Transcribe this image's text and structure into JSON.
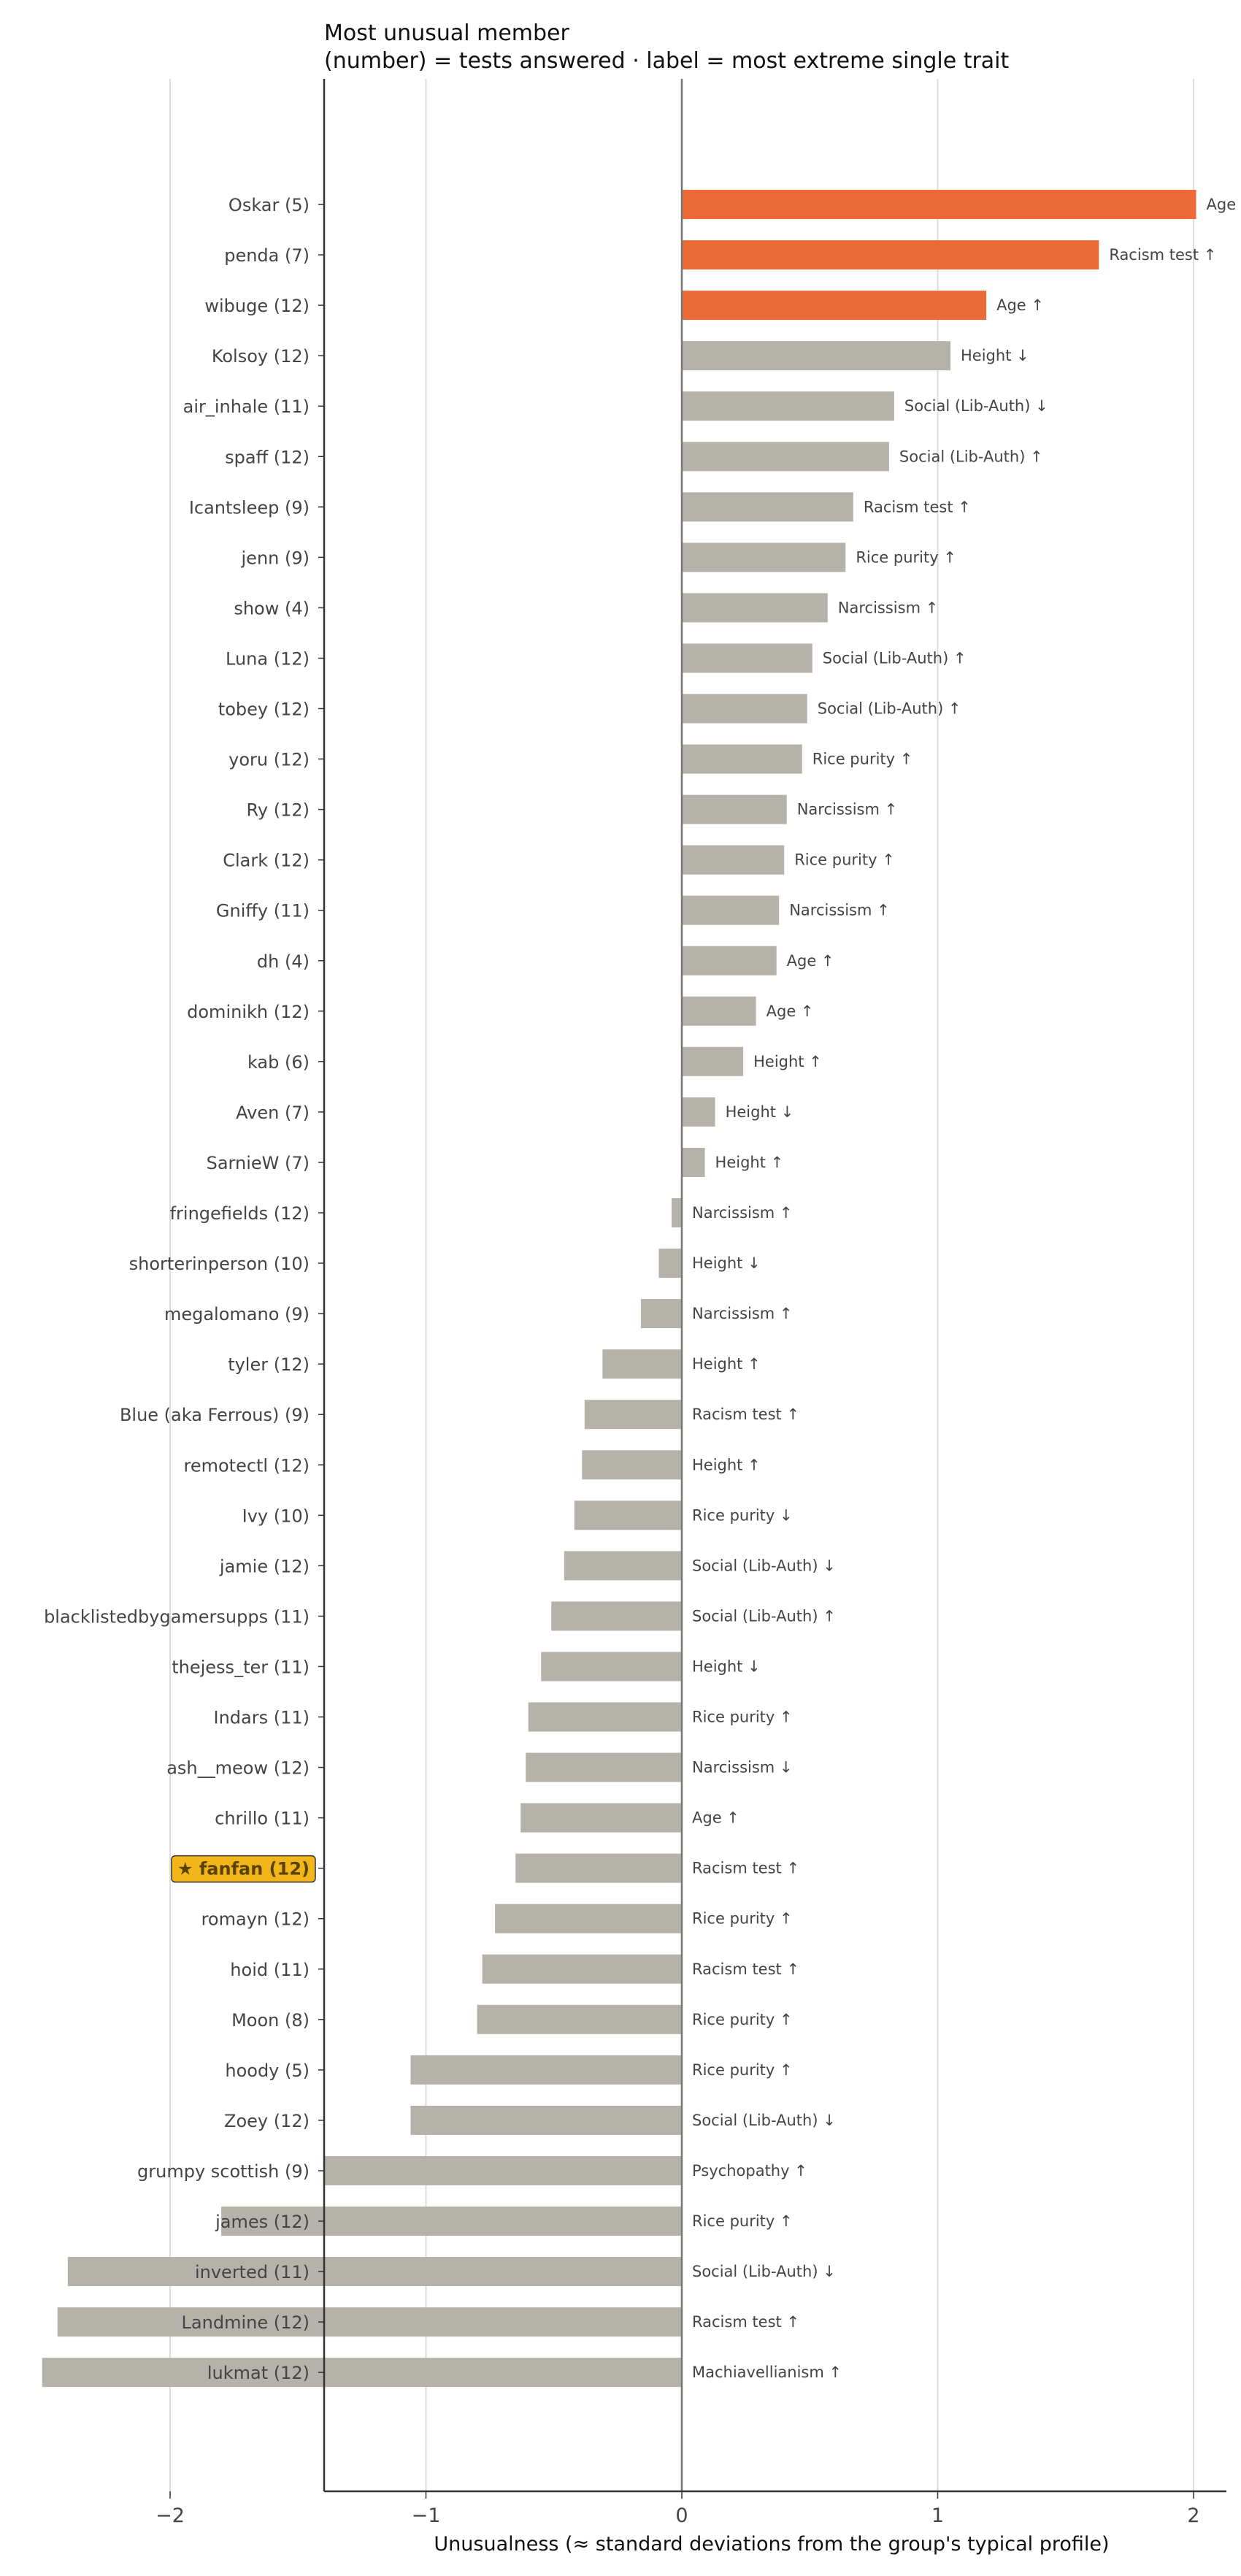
{
  "chart_data": {
    "type": "bar",
    "orientation": "horizontal",
    "title": "Most unusual member",
    "subtitle": "(number) = tests answered · label = most extreme single trait",
    "xlabel": "Unusualness (≈ standard deviations from the group's typical profile)",
    "ylabel": "",
    "xlim": [
      -2.8,
      4.2
    ],
    "xticks": [
      -2,
      -1,
      0,
      1,
      2,
      3,
      4
    ],
    "xtick_labels": [
      "−2",
      "−1",
      "0",
      "1",
      "2",
      "3",
      "4"
    ],
    "grid": "vertical",
    "colors": {
      "top": "#ec6a37",
      "default": "#b5b2a9",
      "highlight_box": "#f2b61a",
      "grid": "#dddddd",
      "axis": "#333333",
      "zero_line": "#777777"
    },
    "highlight_prefix": "★ ",
    "bars": [
      {
        "label": "Oskar (5)",
        "value": 2.01,
        "trait": "Age ↑",
        "top": true
      },
      {
        "label": "penda (7)",
        "value": 1.63,
        "trait": "Racism test ↑",
        "top": true
      },
      {
        "label": "wibuge (12)",
        "value": 1.19,
        "trait": "Age ↑",
        "top": true
      },
      {
        "label": "Kolsoy (12)",
        "value": 1.05,
        "trait": "Height ↓"
      },
      {
        "label": "air_inhale (11)",
        "value": 0.83,
        "trait": "Social (Lib-Auth) ↓"
      },
      {
        "label": "spaff (12)",
        "value": 0.81,
        "trait": "Social (Lib-Auth) ↑"
      },
      {
        "label": "Icantsleep (9)",
        "value": 0.67,
        "trait": "Racism test ↑"
      },
      {
        "label": "jenn (9)",
        "value": 0.64,
        "trait": "Rice purity ↑"
      },
      {
        "label": "show (4)",
        "value": 0.57,
        "trait": "Narcissism ↑"
      },
      {
        "label": "Luna (12)",
        "value": 0.51,
        "trait": "Social (Lib-Auth) ↑"
      },
      {
        "label": "tobey (12)",
        "value": 0.49,
        "trait": "Social (Lib-Auth) ↑"
      },
      {
        "label": "yoru (12)",
        "value": 0.47,
        "trait": "Rice purity ↑"
      },
      {
        "label": "Ry (12)",
        "value": 0.41,
        "trait": "Narcissism ↑"
      },
      {
        "label": "Clark (12)",
        "value": 0.4,
        "trait": "Rice purity ↑"
      },
      {
        "label": "Gniffy (11)",
        "value": 0.38,
        "trait": "Narcissism ↑"
      },
      {
        "label": "dh (4)",
        "value": 0.37,
        "trait": "Age ↑"
      },
      {
        "label": "dominikh (12)",
        "value": 0.29,
        "trait": "Age ↑"
      },
      {
        "label": "kab (6)",
        "value": 0.24,
        "trait": "Height ↑"
      },
      {
        "label": "Aven (7)",
        "value": 0.13,
        "trait": "Height ↓"
      },
      {
        "label": "SarnieW (7)",
        "value": 0.09,
        "trait": "Height ↑"
      },
      {
        "label": "fringefields (12)",
        "value": -0.04,
        "trait": "Narcissism ↑"
      },
      {
        "label": "shorterinperson (10)",
        "value": -0.09,
        "trait": "Height ↓"
      },
      {
        "label": "megalomano (9)",
        "value": -0.16,
        "trait": "Narcissism ↑"
      },
      {
        "label": "tyler (12)",
        "value": -0.31,
        "trait": "Height ↑"
      },
      {
        "label": "Blue (aka Ferrous) (9)",
        "value": -0.38,
        "trait": "Racism test ↑"
      },
      {
        "label": "remotectl (12)",
        "value": -0.39,
        "trait": "Height ↑"
      },
      {
        "label": "Ivy (10)",
        "value": -0.42,
        "trait": "Rice purity ↓"
      },
      {
        "label": "jamie (12)",
        "value": -0.46,
        "trait": "Social (Lib-Auth) ↓"
      },
      {
        "label": "blacklistedbygamersupps (11)",
        "value": -0.51,
        "trait": "Social (Lib-Auth) ↑"
      },
      {
        "label": "thejess_ter (11)",
        "value": -0.55,
        "trait": "Height ↓"
      },
      {
        "label": "Indars (11)",
        "value": -0.6,
        "trait": "Rice purity ↑"
      },
      {
        "label": "ash__meow (12)",
        "value": -0.61,
        "trait": "Narcissism ↓"
      },
      {
        "label": "chrillo (11)",
        "value": -0.63,
        "trait": "Age ↑"
      },
      {
        "label": "fanfan (12)",
        "value": -0.65,
        "trait": "Racism test ↑",
        "highlight": true
      },
      {
        "label": "romayn (12)",
        "value": -0.73,
        "trait": "Rice purity ↑"
      },
      {
        "label": "hoid (11)",
        "value": -0.78,
        "trait": "Racism test ↑"
      },
      {
        "label": "Moon (8)",
        "value": -0.8,
        "trait": "Rice purity ↑"
      },
      {
        "label": "hoody (5)",
        "value": -1.06,
        "trait": "Rice purity ↑"
      },
      {
        "label": "Zoey (12)",
        "value": -1.06,
        "trait": "Social (Lib-Auth) ↓"
      },
      {
        "label": "grumpy scottish (9)",
        "value": -1.4,
        "trait": "Psychopathy ↑"
      },
      {
        "label": "james (12)",
        "value": -1.8,
        "trait": "Rice purity ↑"
      },
      {
        "label": "inverted (11)",
        "value": -2.4,
        "trait": "Social (Lib-Auth) ↓"
      },
      {
        "label": "Landmine (12)",
        "value": -2.44,
        "trait": "Racism test ↑"
      },
      {
        "label": "lukmat (12)",
        "value": -2.5,
        "trait": "Machiavellianism ↑"
      }
    ]
  }
}
